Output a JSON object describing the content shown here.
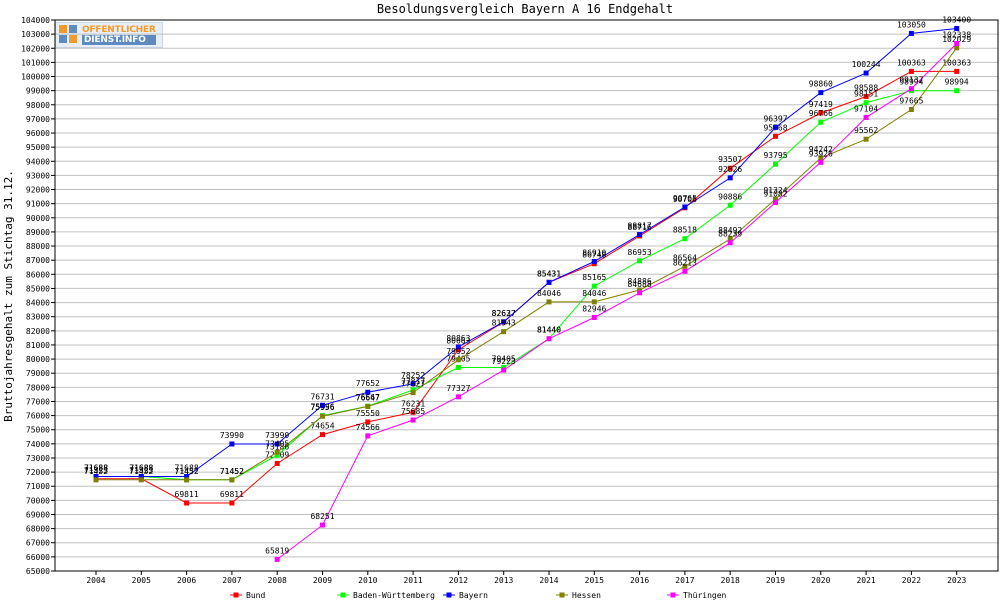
{
  "chart_data": {
    "type": "line",
    "title": "Besoldungsvergleich Bayern A 16 Endgehalt",
    "ylabel": "Bruttojahresgehalt zum Stichtag 31.12.",
    "xlabel": "",
    "ylim": [
      65000,
      104000
    ],
    "ystep": 1000,
    "grid": true,
    "legend_position": "bottom",
    "categories": [
      "2004",
      "2005",
      "2006",
      "2007",
      "2008",
      "2009",
      "2010",
      "2011",
      "2012",
      "2013",
      "2014",
      "2015",
      "2016",
      "2017",
      "2018",
      "2019",
      "2020",
      "2021",
      "2022",
      "2023"
    ],
    "series": [
      {
        "name": "Bund",
        "color": "#ff0000",
        "values": [
          71523,
          71523,
          69811,
          69811,
          72609,
          74654,
          75550,
          76231,
          80663,
          82627,
          85431,
          86748,
          88716,
          90706,
          93507,
          95768,
          97419,
          98588,
          100363,
          100363
        ]
      },
      {
        "name": "Baden-Württemberg",
        "color": "#00ff00",
        "values": [
          71688,
          71688,
          71452,
          71452,
          73186,
          75996,
          76667,
          77817,
          79405,
          79405,
          81440,
          85165,
          86953,
          88518,
          90886,
          93795,
          96766,
          98151,
          98994,
          98994
        ]
      },
      {
        "name": "Bayern",
        "color": "#0000ff",
        "values": [
          71688,
          71688,
          71688,
          73990,
          73990,
          76731,
          77652,
          78252,
          80863,
          82637,
          85431,
          86910,
          88817,
          90765,
          92826,
          96397,
          98860,
          100244,
          103050,
          103400
        ]
      },
      {
        "name": "Hessen",
        "color": "#808000",
        "values": [
          71452,
          71452,
          71452,
          71452,
          73405,
          75956,
          76647,
          77627,
          79952,
          81943,
          84046,
          84046,
          84886,
          86564,
          88492,
          91324,
          94242,
          95562,
          97665,
          102029
        ]
      },
      {
        "name": "Thüringen",
        "color": "#ff00ff",
        "values": [
          null,
          null,
          null,
          null,
          65819,
          68251,
          74566,
          75685,
          77327,
          79223,
          81440,
          82946,
          84688,
          86213,
          88239,
          91082,
          93926,
          97104,
          99137,
          102338
        ]
      }
    ]
  },
  "logo": {
    "line1": "OFFENTLICHER",
    "line2": "DIENST.INFO"
  },
  "colors": {
    "background": "#ffffff",
    "frame": "#000000",
    "grid": "#c0c0c0"
  }
}
